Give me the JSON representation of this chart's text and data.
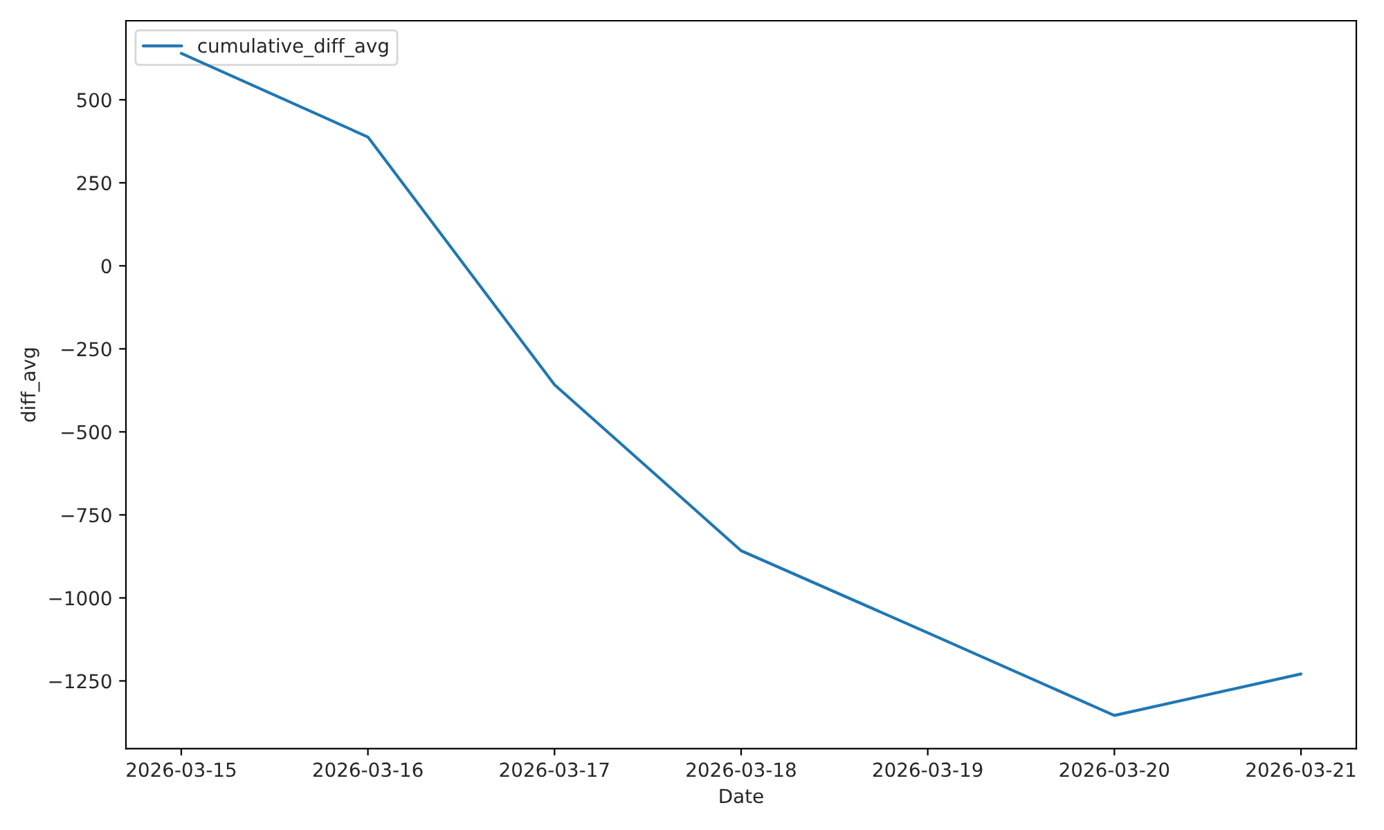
{
  "chart_data": {
    "type": "line",
    "xlabel": "Date",
    "ylabel": "diff_avg",
    "x": [
      "2026-03-15",
      "2026-03-16",
      "2026-03-17",
      "2026-03-18",
      "2026-03-19",
      "2026-03-20",
      "2026-03-21"
    ],
    "series": [
      {
        "name": "cumulative_diff_avg",
        "color": "#1f77b4",
        "values": [
          640,
          388,
          -358,
          -858,
          -1105,
          -1354,
          -1229
        ]
      }
    ],
    "xlim": [
      "2026-03-14T16:53",
      "2026-03-21T07:07"
    ],
    "xticks": [
      "2026-03-15",
      "2026-03-16",
      "2026-03-17",
      "2026-03-18",
      "2026-03-19",
      "2026-03-20",
      "2026-03-21"
    ],
    "ylim": [
      -1454,
      738
    ],
    "yticks": [
      -1250,
      -1000,
      -750,
      -500,
      -250,
      0,
      250,
      500
    ],
    "grid": false,
    "legend": "top left",
    "marker": "none",
    "line_style": "solid"
  }
}
